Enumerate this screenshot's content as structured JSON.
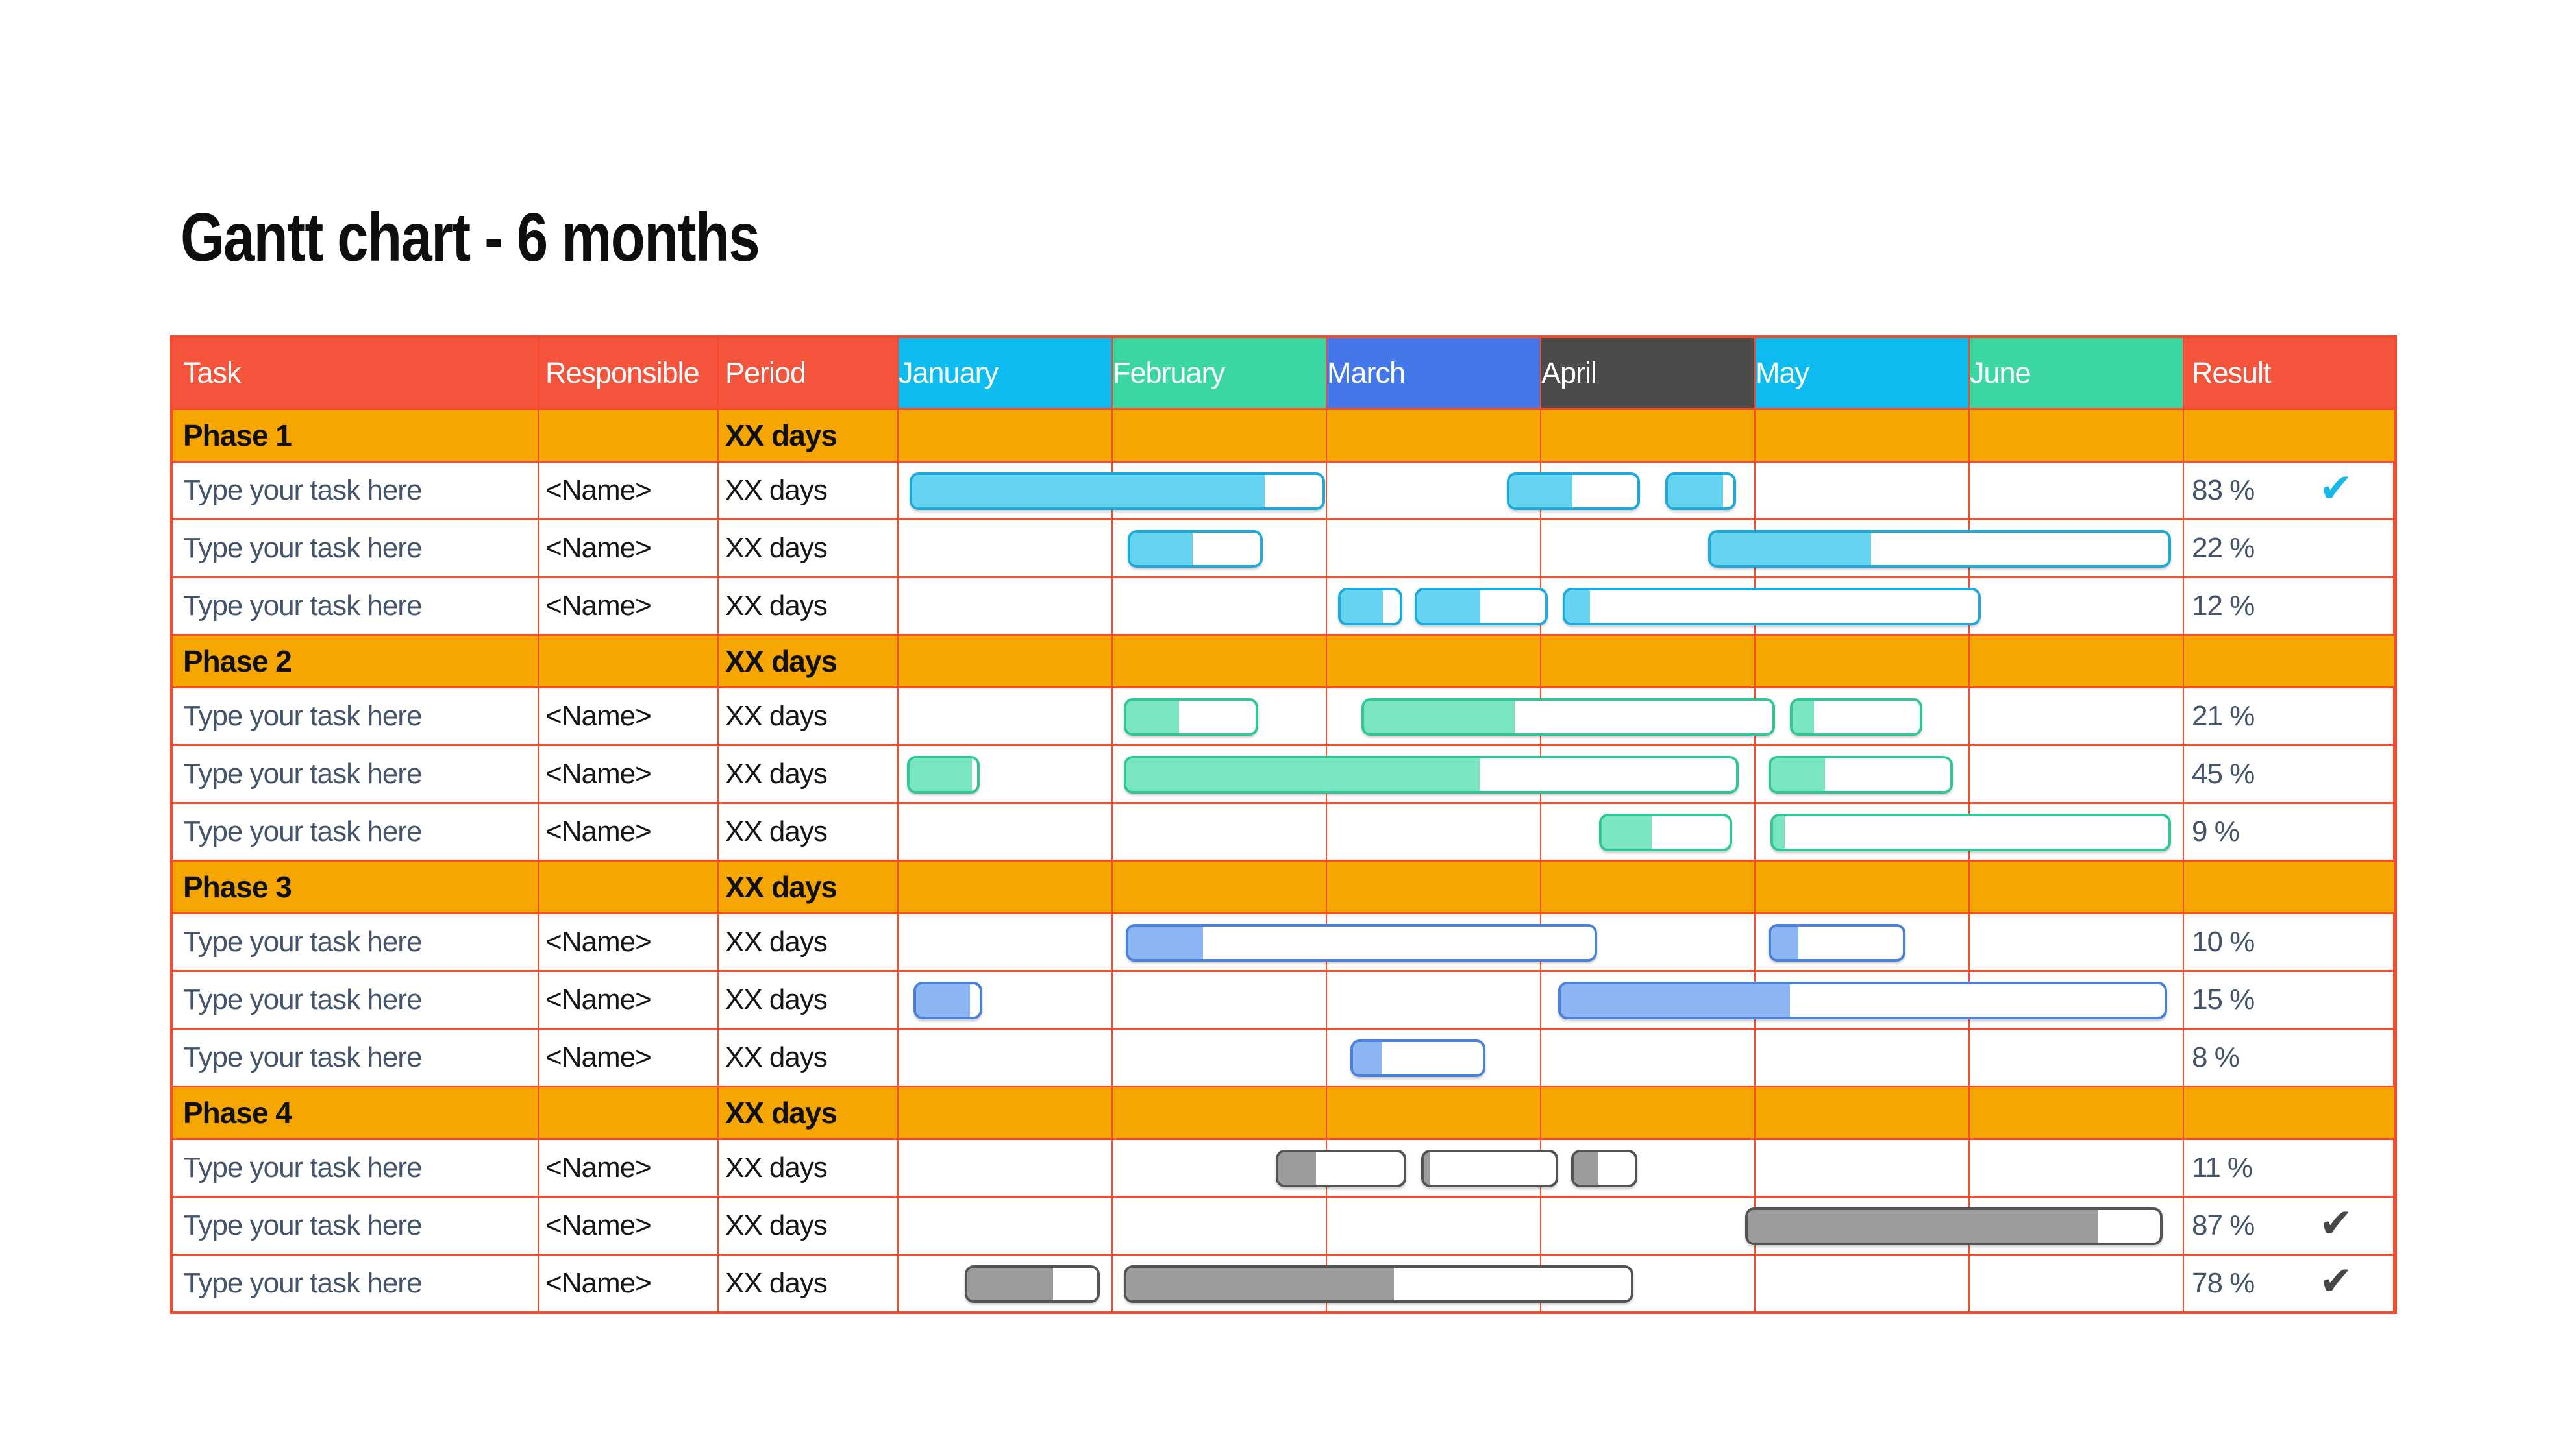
{
  "title": "Gantt chart - 6 months",
  "columns": {
    "task": "Task",
    "responsible": "Responsible",
    "period": "Period",
    "result": "Result"
  },
  "months": [
    {
      "label": "January",
      "color": "#0CBBEF"
    },
    {
      "label": "February",
      "color": "#3BD7A1"
    },
    {
      "label": "March",
      "color": "#4478E8"
    },
    {
      "label": "April",
      "color": "#4B4B49"
    },
    {
      "label": "May",
      "color": "#0CBBEF"
    },
    {
      "label": "June",
      "color": "#3BD7A1"
    }
  ],
  "colors": {
    "grid": "#F94B2C",
    "header_red": "#F4543C",
    "phase_orange": "#F6A600",
    "task_text": "#44546A",
    "cell_text": "#161616",
    "background": "#FFFFFF"
  },
  "palettes": {
    "cyan": {
      "fill": "#66D3F1",
      "border": "#1CA9DB",
      "check": "#18B9E9"
    },
    "green": {
      "fill": "#7AE5C1",
      "border": "#2FC795",
      "check": "#2FC795"
    },
    "blue": {
      "fill": "#8CB5F3",
      "border": "#4B80DB",
      "check": "#4B80DB"
    },
    "gray": {
      "fill": "#9C9C9C",
      "border": "#545454",
      "check": "#474747"
    }
  },
  "chart_data": {
    "type": "gantt",
    "title": "Gantt chart - 6 months",
    "time_axis": [
      "January",
      "February",
      "March",
      "April",
      "May",
      "June"
    ],
    "unit": "month-fraction (0 = start of January, 6 = end of June)",
    "rows": [
      {
        "type": "phase",
        "task": "Phase 1",
        "responsible": "",
        "period": "XX days",
        "result": ""
      },
      {
        "type": "task",
        "palette": "cyan",
        "task": "Type your task here",
        "responsible": "<Name>",
        "period": "XX days",
        "result": "83 %",
        "done": true,
        "bars": [
          {
            "start": 0.05,
            "end": 1.99,
            "fill": 0.86
          },
          {
            "start": 2.84,
            "end": 3.46,
            "fill": 0.49
          },
          {
            "start": 3.58,
            "end": 3.91,
            "fill": 0.84
          }
        ]
      },
      {
        "type": "task",
        "palette": "cyan",
        "task": "Type your task here",
        "responsible": "<Name>",
        "period": "XX days",
        "result": "22 %",
        "done": false,
        "bars": [
          {
            "start": 1.07,
            "end": 1.7,
            "fill": 0.48
          },
          {
            "start": 3.78,
            "end": 5.94,
            "fill": 0.35
          }
        ]
      },
      {
        "type": "task",
        "palette": "cyan",
        "task": "Type your task here",
        "responsible": "<Name>",
        "period": "XX days",
        "result": "12 %",
        "done": false,
        "bars": [
          {
            "start": 2.05,
            "end": 2.35,
            "fill": 0.72
          },
          {
            "start": 2.41,
            "end": 3.03,
            "fill": 0.49
          },
          {
            "start": 3.1,
            "end": 5.05,
            "fill": 0.06
          }
        ]
      },
      {
        "type": "phase",
        "task": "Phase 2",
        "responsible": "",
        "period": "XX days",
        "result": ""
      },
      {
        "type": "task",
        "palette": "green",
        "task": "Type your task here",
        "responsible": "<Name>",
        "period": "XX days",
        "result": "21 %",
        "done": false,
        "bars": [
          {
            "start": 1.05,
            "end": 1.68,
            "fill": 0.41
          },
          {
            "start": 2.16,
            "end": 4.09,
            "fill": 0.37
          },
          {
            "start": 4.16,
            "end": 4.78,
            "fill": 0.17
          }
        ]
      },
      {
        "type": "task",
        "palette": "green",
        "task": "Type your task here",
        "responsible": "<Name>",
        "period": "XX days",
        "result": "45 %",
        "done": false,
        "bars": [
          {
            "start": 0.04,
            "end": 0.38,
            "fill": 0.92
          },
          {
            "start": 1.05,
            "end": 3.92,
            "fill": 0.58
          },
          {
            "start": 4.06,
            "end": 4.92,
            "fill": 0.3
          }
        ]
      },
      {
        "type": "task",
        "palette": "green",
        "task": "Type your task here",
        "responsible": "<Name>",
        "period": "XX days",
        "result": "9 %",
        "done": false,
        "bars": [
          {
            "start": 3.27,
            "end": 3.89,
            "fill": 0.39
          },
          {
            "start": 4.07,
            "end": 5.94,
            "fill": 0.03
          }
        ]
      },
      {
        "type": "phase",
        "task": "Phase 3",
        "responsible": "",
        "period": "XX days",
        "result": ""
      },
      {
        "type": "task",
        "palette": "blue",
        "task": "Type your task here",
        "responsible": "<Name>",
        "period": "XX days",
        "result": "10 %",
        "done": false,
        "bars": [
          {
            "start": 1.06,
            "end": 3.26,
            "fill": 0.16
          },
          {
            "start": 4.06,
            "end": 4.7,
            "fill": 0.21
          }
        ]
      },
      {
        "type": "task",
        "palette": "blue",
        "task": "Type your task here",
        "responsible": "<Name>",
        "period": "XX days",
        "result": "15 %",
        "done": false,
        "bars": [
          {
            "start": 0.07,
            "end": 0.39,
            "fill": 0.85
          },
          {
            "start": 3.08,
            "end": 5.92,
            "fill": 0.38
          }
        ]
      },
      {
        "type": "task",
        "palette": "blue",
        "task": "Type your task here",
        "responsible": "<Name>",
        "period": "XX days",
        "result": "8 %",
        "done": false,
        "bars": [
          {
            "start": 2.11,
            "end": 2.74,
            "fill": 0.22
          }
        ]
      },
      {
        "type": "phase",
        "task": "Phase 4",
        "responsible": "",
        "period": "XX days",
        "result": ""
      },
      {
        "type": "task",
        "palette": "gray",
        "task": "Type your task here",
        "responsible": "<Name>",
        "period": "XX days",
        "result": "11 %",
        "done": false,
        "bars": [
          {
            "start": 1.76,
            "end": 2.37,
            "fill": 0.3
          },
          {
            "start": 2.44,
            "end": 3.08,
            "fill": 0.05
          },
          {
            "start": 3.14,
            "end": 3.45,
            "fill": 0.4
          }
        ]
      },
      {
        "type": "task",
        "palette": "gray",
        "task": "Type your task here",
        "responsible": "<Name>",
        "period": "XX days",
        "result": "87 %",
        "done": true,
        "bars": [
          {
            "start": 3.95,
            "end": 5.9,
            "fill": 0.85
          }
        ]
      },
      {
        "type": "task",
        "palette": "gray",
        "task": "Type your task here",
        "responsible": "<Name>",
        "period": "XX days",
        "result": "78 %",
        "done": true,
        "bars": [
          {
            "start": 0.31,
            "end": 0.94,
            "fill": 0.66
          },
          {
            "start": 1.05,
            "end": 3.43,
            "fill": 0.53
          }
        ]
      }
    ]
  }
}
